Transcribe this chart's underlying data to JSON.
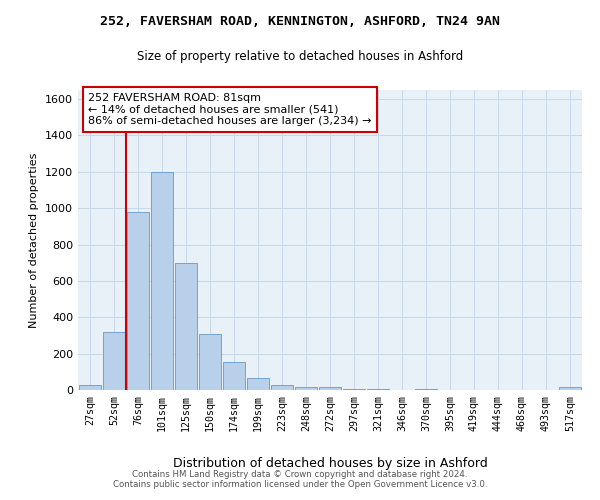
{
  "title": "252, FAVERSHAM ROAD, KENNINGTON, ASHFORD, TN24 9AN",
  "subtitle": "Size of property relative to detached houses in Ashford",
  "xlabel": "Distribution of detached houses by size in Ashford",
  "ylabel": "Number of detached properties",
  "categories": [
    "27sqm",
    "52sqm",
    "76sqm",
    "101sqm",
    "125sqm",
    "150sqm",
    "174sqm",
    "199sqm",
    "223sqm",
    "248sqm",
    "272sqm",
    "297sqm",
    "321sqm",
    "346sqm",
    "370sqm",
    "395sqm",
    "419sqm",
    "444sqm",
    "468sqm",
    "493sqm",
    "517sqm"
  ],
  "values": [
    25,
    320,
    980,
    1200,
    700,
    310,
    155,
    65,
    30,
    18,
    15,
    5,
    5,
    0,
    5,
    0,
    0,
    0,
    0,
    0,
    15
  ],
  "bar_color": "#b8d0ea",
  "bar_edge_color": "#6699cc",
  "vline_color": "#cc0000",
  "vline_x_index": 2,
  "annotation_text": "252 FAVERSHAM ROAD: 81sqm\n← 14% of detached houses are smaller (541)\n86% of semi-detached houses are larger (3,234) →",
  "annotation_box_facecolor": "#ffffff",
  "annotation_box_edgecolor": "#cc0000",
  "ylim": [
    0,
    1650
  ],
  "yticks": [
    0,
    200,
    400,
    600,
    800,
    1000,
    1200,
    1400,
    1600
  ],
  "background_color": "#e8f0f8",
  "grid_color": "#c8d8e8",
  "footer_line1": "Contains HM Land Registry data © Crown copyright and database right 2024.",
  "footer_line2": "Contains public sector information licensed under the Open Government Licence v3.0."
}
